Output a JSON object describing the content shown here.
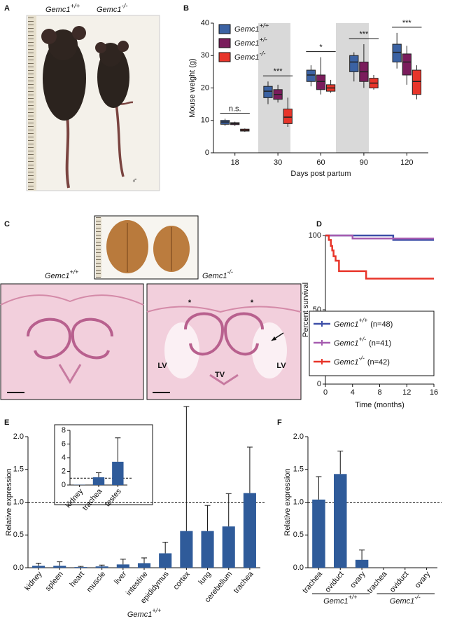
{
  "panel_labels": [
    "A",
    "B",
    "C",
    "D",
    "E",
    "F"
  ],
  "photo_a": {
    "labels": [
      {
        "gene": "Gemc1",
        "sup": "+/+"
      },
      {
        "gene": "Gemc1",
        "sup": "-/-"
      }
    ],
    "symbol": "♂"
  },
  "photo_c": {
    "labels": [
      {
        "gene": "Gemc1",
        "sup": "+/+"
      },
      {
        "gene": "Gemc1",
        "sup": "-/-"
      }
    ],
    "marks": [
      "*",
      "*"
    ],
    "regions": [
      "LV",
      "LV",
      "TV"
    ]
  },
  "chart_data": [
    {
      "type": "box",
      "xlabel": "Days post partum",
      "ylabel": "Mouse weight (g)",
      "categories": [
        "18",
        "30",
        "60",
        "90",
        "120"
      ],
      "ylim": [
        0,
        40
      ],
      "yticks": [
        0,
        10,
        20,
        30,
        40
      ],
      "legend": "upper left",
      "series": [
        {
          "name": "Gemc1",
          "name_sup": "+/+",
          "color": "#3b62a3",
          "values": [
            [
              8.3,
              8.8,
              9.5,
              10,
              10.5
            ],
            [
              15,
              17,
              19,
              20.5,
              22
            ],
            [
              20.5,
              22,
              24,
              25.5,
              27
            ],
            [
              22,
              25,
              28,
              30,
              31
            ],
            [
              26,
              28,
              31,
              33.5,
              37
            ]
          ]
        },
        {
          "name": "Gemc1",
          "name_sup": "+/-",
          "color": "#7a1c5c",
          "values": [
            [
              8.3,
              8.7,
              9,
              9.3,
              9.6
            ],
            [
              15.5,
              16.5,
              18,
              19.5,
              21
            ],
            [
              18,
              19.5,
              22,
              24,
              29.5
            ],
            [
              20,
              22,
              25,
              28,
              33.5
            ],
            [
              21,
              24,
              28,
              30.5,
              33
            ]
          ]
        },
        {
          "name": "Gemc1",
          "name_sup": "-/-",
          "color": "#e8352a",
          "values": [
            [
              6.5,
              6.7,
              7,
              7.3,
              7.5
            ],
            [
              8,
              9,
              11,
              13.5,
              17
            ],
            [
              18.5,
              19,
              20,
              21,
              22.5
            ],
            [
              19.5,
              20,
              21.5,
              23,
              24
            ],
            [
              16.5,
              18,
              22,
              25.5,
              27
            ]
          ]
        }
      ],
      "significance": [
        "n.s.",
        "***",
        "*",
        "***",
        "***"
      ]
    },
    {
      "type": "step",
      "xlabel": "Time (months)",
      "ylabel": "Percent survival",
      "xlim": [
        0,
        16
      ],
      "xticks": [
        0,
        4,
        8,
        12,
        16
      ],
      "ylim": [
        0,
        100
      ],
      "yticks": [
        0,
        50,
        100
      ],
      "legend": "lower right",
      "series": [
        {
          "name": "Gemc1",
          "name_sup": "+/+",
          "name_suffix": "(n=48)",
          "color": "#3d4fa8",
          "x": [
            0,
            10,
            10,
            16
          ],
          "values": [
            100,
            100,
            97,
            97
          ]
        },
        {
          "name": "Gemc1",
          "name_sup": "+/-",
          "name_suffix": "(n=41)",
          "color": "#a65cb0",
          "x": [
            0,
            4,
            4,
            16
          ],
          "values": [
            100,
            100,
            98,
            98
          ]
        },
        {
          "name": "Gemc1",
          "name_sup": "-/-",
          "name_suffix": "(n=42)",
          "color": "#e8352a",
          "x": [
            0,
            0.5,
            0.5,
            0.8,
            0.8,
            1,
            1,
            1.2,
            1.2,
            1.5,
            1.5,
            2,
            2,
            6,
            6,
            16
          ],
          "values": [
            100,
            100,
            97,
            97,
            93,
            93,
            90,
            90,
            86,
            86,
            83,
            83,
            76,
            76,
            71,
            71
          ]
        }
      ]
    },
    {
      "type": "bar",
      "ylabel": "Relative expression",
      "categories": [
        "kidney",
        "spleen",
        "heart",
        "muscle",
        "liver",
        "intestine",
        "epididymus",
        "cortex",
        "lung",
        "cerebellum",
        "trachea"
      ],
      "values": [
        0.03,
        0.03,
        0.01,
        0.02,
        0.05,
        0.07,
        0.22,
        0.56,
        0.56,
        0.63,
        1.14
      ],
      "errors": [
        0.04,
        0.06,
        0.01,
        0.02,
        0.08,
        0.08,
        0.17,
        1.9,
        0.39,
        0.5,
        0.7
      ],
      "color": "#2f5b9a",
      "ylim": [
        0,
        2
      ],
      "yticks": [
        {
          "value": 0,
          "label": "0.0"
        },
        {
          "value": 0.5,
          "label": "0.5"
        },
        {
          "value": 1,
          "label": "1.0"
        },
        {
          "value": 1.5,
          "label": "1.5"
        },
        {
          "value": 2,
          "label": "2.0"
        }
      ],
      "refline": 1,
      "groups": [
        {
          "gene": "Gemc1",
          "sup": "+/+"
        }
      ]
    },
    {
      "type": "bar",
      "categories": [
        "kidney",
        "trachea",
        "testes"
      ],
      "values": [
        0.03,
        1.14,
        3.4
      ],
      "errors": [
        null,
        0.65,
        3.5
      ],
      "color": "#2f5b9a",
      "ylim": [
        0,
        8
      ],
      "yticks": [
        0,
        2,
        4,
        6,
        8
      ],
      "refline": 1
    },
    {
      "type": "bar",
      "ylabel": "Relative expression",
      "categories": [
        "trachea",
        "oviduct",
        "ovary",
        "trachea",
        "oviduct",
        "ovary"
      ],
      "values": [
        1.04,
        1.43,
        0.12,
        0,
        0,
        0
      ],
      "errors": [
        0.35,
        0.35,
        0.15,
        null,
        null,
        null
      ],
      "color": "#2f5b9a",
      "ylim": [
        0,
        2
      ],
      "yticks": [
        {
          "value": 0,
          "label": "0.0"
        },
        {
          "value": 0.5,
          "label": "0.5"
        },
        {
          "value": 1,
          "label": "1.0"
        },
        {
          "value": 1.5,
          "label": "1.5"
        },
        {
          "value": 2,
          "label": "2.0"
        }
      ],
      "refline": 1,
      "groups": [
        {
          "gene": "Gemc1",
          "sup": "+/+"
        },
        {
          "gene": "Gemc1",
          "sup": "-/-"
        }
      ]
    }
  ]
}
